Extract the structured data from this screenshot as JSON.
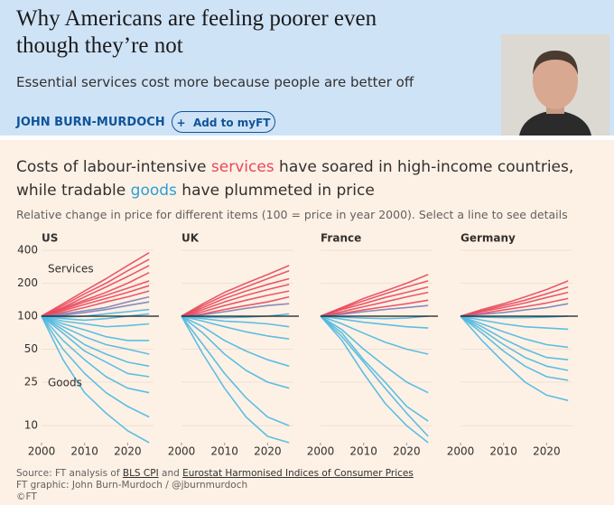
{
  "header": {
    "title": "Why Americans are feeling poorer even though they’re not",
    "subtitle": "Essential services cost more because people are better off",
    "author": "JOHN BURN-MURDOCH",
    "button": "Add to myFT"
  },
  "figure": {
    "title": [
      "Costs of labour-intensive ",
      "services",
      " have soared in high-income countries, while tradable ",
      "goods",
      " have plummeted in price"
    ],
    "subtitle": "Relative change in price for different items (100 = price in year 2000). Select a line to see details",
    "source": [
      "Source: FT analysis of ",
      "BLS CPI",
      " and ",
      "Eurostat Harmonised Indices of Consumer Prices"
    ],
    "credit": "FT graphic: John Burn-Murdoch / @jburnmurdoch",
    "copyright": "©FT"
  },
  "chart_data": [
    {
      "type": "line",
      "title": "US",
      "log_y": true,
      "show_ytick_labels": true,
      "baseline": 100,
      "annotations": [
        "Services",
        "Goods"
      ],
      "x": [
        2000,
        2005,
        2010,
        2015,
        2020,
        2025
      ],
      "xlim": [
        2000,
        2026
      ],
      "xticks": [
        2000,
        2010,
        2020
      ],
      "ylim": [
        7,
        400
      ],
      "yticks": [
        10,
        25,
        50,
        100,
        200,
        400
      ],
      "series": [
        {
          "color": "#e8475b",
          "values": [
            100,
            130,
            170,
            220,
            290,
            380
          ]
        },
        {
          "color": "#e8475b",
          "values": [
            100,
            125,
            160,
            200,
            260,
            330
          ]
        },
        {
          "color": "#e8475b",
          "values": [
            100,
            120,
            150,
            185,
            230,
            290
          ]
        },
        {
          "color": "#e8475b",
          "values": [
            100,
            118,
            140,
            165,
            200,
            250
          ]
        },
        {
          "color": "#e8475b",
          "values": [
            100,
            115,
            135,
            155,
            180,
            210
          ]
        },
        {
          "color": "#e8475b",
          "values": [
            100,
            112,
            128,
            145,
            165,
            190
          ]
        },
        {
          "color": "#e8475b",
          "values": [
            100,
            108,
            120,
            135,
            150,
            170
          ]
        },
        {
          "color": "#7c7fb5",
          "values": [
            100,
            105,
            112,
            120,
            135,
            150
          ]
        },
        {
          "color": "#7c7fb5",
          "values": [
            100,
            102,
            108,
            115,
            125,
            135
          ]
        },
        {
          "color": "#4db8e0",
          "values": [
            100,
            98,
            100,
            105,
            110,
            115
          ]
        },
        {
          "color": "#4db8e0",
          "values": [
            100,
            95,
            92,
            95,
            100,
            105
          ]
        },
        {
          "color": "#4db8e0",
          "values": [
            100,
            90,
            85,
            80,
            82,
            85
          ]
        },
        {
          "color": "#4db8e0",
          "values": [
            100,
            85,
            75,
            65,
            60,
            60
          ]
        },
        {
          "color": "#4db8e0",
          "values": [
            100,
            80,
            65,
            55,
            50,
            45
          ]
        },
        {
          "color": "#4db8e0",
          "values": [
            100,
            75,
            55,
            45,
            38,
            35
          ]
        },
        {
          "color": "#4db8e0",
          "values": [
            100,
            70,
            48,
            38,
            30,
            28
          ]
        },
        {
          "color": "#4db8e0",
          "values": [
            100,
            60,
            40,
            28,
            22,
            20
          ]
        },
        {
          "color": "#4db8e0",
          "values": [
            100,
            50,
            30,
            20,
            15,
            12
          ]
        },
        {
          "color": "#4db8e0",
          "values": [
            100,
            40,
            20,
            13,
            9,
            7
          ]
        }
      ]
    },
    {
      "type": "line",
      "title": "UK",
      "log_y": true,
      "show_ytick_labels": false,
      "baseline": 100,
      "x": [
        2000,
        2005,
        2010,
        2015,
        2020,
        2025
      ],
      "xlim": [
        2000,
        2026
      ],
      "xticks": [
        2000,
        2010,
        2020
      ],
      "ylim": [
        7,
        400
      ],
      "yticks": [
        10,
        25,
        50,
        100,
        200,
        400
      ],
      "series": [
        {
          "color": "#e8475b",
          "values": [
            100,
            130,
            165,
            200,
            240,
            290
          ]
        },
        {
          "color": "#e8475b",
          "values": [
            100,
            125,
            155,
            185,
            220,
            260
          ]
        },
        {
          "color": "#e8475b",
          "values": [
            100,
            120,
            145,
            170,
            195,
            220
          ]
        },
        {
          "color": "#e8475b",
          "values": [
            100,
            115,
            135,
            155,
            175,
            195
          ]
        },
        {
          "color": "#e8475b",
          "values": [
            100,
            110,
            125,
            140,
            155,
            170
          ]
        },
        {
          "color": "#e8475b",
          "values": [
            100,
            105,
            115,
            125,
            135,
            150
          ]
        },
        {
          "color": "#7c7fb5",
          "values": [
            100,
            103,
            110,
            118,
            125,
            130
          ]
        },
        {
          "color": "#4db8e0",
          "values": [
            100,
            98,
            97,
            98,
            100,
            105
          ]
        },
        {
          "color": "#4db8e0",
          "values": [
            100,
            95,
            90,
            88,
            85,
            80
          ]
        },
        {
          "color": "#4db8e0",
          "values": [
            100,
            90,
            80,
            72,
            66,
            62
          ]
        },
        {
          "color": "#4db8e0",
          "values": [
            100,
            80,
            60,
            48,
            40,
            35
          ]
        },
        {
          "color": "#4db8e0",
          "values": [
            100,
            70,
            45,
            32,
            25,
            22
          ]
        },
        {
          "color": "#4db8e0",
          "values": [
            100,
            55,
            30,
            18,
            12,
            10
          ]
        },
        {
          "color": "#4db8e0",
          "values": [
            100,
            45,
            22,
            12,
            8,
            7
          ]
        }
      ]
    },
    {
      "type": "line",
      "title": "France",
      "log_y": true,
      "show_ytick_labels": false,
      "baseline": 100,
      "x": [
        2000,
        2005,
        2010,
        2015,
        2020,
        2025
      ],
      "xlim": [
        2000,
        2026
      ],
      "xticks": [
        2000,
        2010,
        2020
      ],
      "ylim": [
        7,
        400
      ],
      "yticks": [
        10,
        25,
        50,
        100,
        200,
        400
      ],
      "series": [
        {
          "color": "#e8475b",
          "values": [
            100,
            120,
            145,
            170,
            200,
            240
          ]
        },
        {
          "color": "#e8475b",
          "values": [
            100,
            118,
            138,
            160,
            185,
            210
          ]
        },
        {
          "color": "#e8475b",
          "values": [
            100,
            115,
            130,
            148,
            165,
            185
          ]
        },
        {
          "color": "#e8475b",
          "values": [
            100,
            110,
            122,
            135,
            150,
            165
          ]
        },
        {
          "color": "#e8475b",
          "values": [
            100,
            106,
            114,
            122,
            130,
            140
          ]
        },
        {
          "color": "#7c7fb5",
          "values": [
            100,
            104,
            110,
            115,
            120,
            125
          ]
        },
        {
          "color": "#4db8e0",
          "values": [
            100,
            98,
            96,
            95,
            96,
            100
          ]
        },
        {
          "color": "#4db8e0",
          "values": [
            100,
            94,
            88,
            84,
            80,
            78
          ]
        },
        {
          "color": "#4db8e0",
          "values": [
            100,
            85,
            70,
            58,
            50,
            45
          ]
        },
        {
          "color": "#4db8e0",
          "values": [
            100,
            75,
            50,
            35,
            25,
            20
          ]
        },
        {
          "color": "#4db8e0",
          "values": [
            100,
            70,
            40,
            25,
            15,
            11
          ]
        },
        {
          "color": "#4db8e0",
          "values": [
            100,
            60,
            30,
            16,
            10,
            7
          ]
        },
        {
          "color": "#4db8e0",
          "values": [
            100,
            65,
            38,
            22,
            13,
            8
          ]
        }
      ]
    },
    {
      "type": "line",
      "title": "Germany",
      "log_y": true,
      "show_ytick_labels": false,
      "baseline": 100,
      "x": [
        2000,
        2005,
        2010,
        2015,
        2020,
        2025
      ],
      "xlim": [
        2000,
        2026
      ],
      "xticks": [
        2000,
        2010,
        2020
      ],
      "ylim": [
        7,
        400
      ],
      "yticks": [
        10,
        25,
        50,
        100,
        200,
        400
      ],
      "series": [
        {
          "color": "#e8475b",
          "values": [
            100,
            115,
            130,
            150,
            175,
            210
          ]
        },
        {
          "color": "#e8475b",
          "values": [
            100,
            112,
            125,
            140,
            160,
            185
          ]
        },
        {
          "color": "#e8475b",
          "values": [
            100,
            110,
            120,
            132,
            148,
            165
          ]
        },
        {
          "color": "#e8475b",
          "values": [
            100,
            106,
            114,
            122,
            132,
            145
          ]
        },
        {
          "color": "#7c7fb5",
          "values": [
            100,
            104,
            108,
            114,
            120,
            130
          ]
        },
        {
          "color": "#4db8e0",
          "values": [
            100,
            98,
            97,
            97,
            98,
            100
          ]
        },
        {
          "color": "#4db8e0",
          "values": [
            100,
            92,
            85,
            80,
            78,
            76
          ]
        },
        {
          "color": "#4db8e0",
          "values": [
            100,
            85,
            72,
            62,
            55,
            52
          ]
        },
        {
          "color": "#4db8e0",
          "values": [
            100,
            80,
            62,
            50,
            42,
            40
          ]
        },
        {
          "color": "#4db8e0",
          "values": [
            100,
            75,
            55,
            42,
            35,
            32
          ]
        },
        {
          "color": "#4db8e0",
          "values": [
            100,
            70,
            48,
            35,
            28,
            26
          ]
        },
        {
          "color": "#4db8e0",
          "values": [
            100,
            60,
            38,
            25,
            19,
            17
          ]
        }
      ]
    }
  ]
}
